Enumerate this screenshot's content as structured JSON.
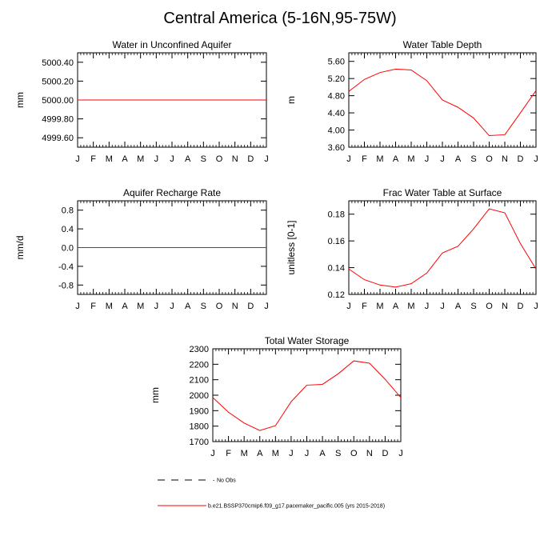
{
  "figure": {
    "title": "Central America (5-16N,95-75W)"
  },
  "months": [
    "J",
    "F",
    "M",
    "A",
    "M",
    "J",
    "J",
    "A",
    "S",
    "O",
    "N",
    "D",
    "J"
  ],
  "legend": [
    {
      "label": "No Obs",
      "style": "dashed",
      "color": "#000000"
    },
    {
      "label": "b.e21.BSSP370cmip6.f09_g17.pacemaker_pacific.005 (yrs 2015-2018)",
      "style": "solid",
      "color": "#ff0000"
    }
  ],
  "colors": {
    "series": "#ff0000",
    "axes": "#000000"
  },
  "chart_data": [
    {
      "id": "water-unconfined-aquifer",
      "type": "line",
      "title": "Water in Unconfined Aquifer",
      "ylabel": "mm",
      "ylim": [
        4999.5,
        5000.5
      ],
      "yticks": [
        4999.6,
        4999.8,
        5000.0,
        5000.2,
        5000.4
      ],
      "ytick_labels": [
        "4999.60",
        "4999.80",
        "5000.00",
        "5000.20",
        "5000.40"
      ],
      "series": [
        {
          "values": [
            5000,
            5000,
            5000,
            5000,
            5000,
            5000,
            5000,
            5000,
            5000,
            5000,
            5000,
            5000,
            5000
          ]
        }
      ]
    },
    {
      "id": "water-table-depth",
      "type": "line",
      "title": "Water Table Depth",
      "ylabel": "m",
      "ylim": [
        3.6,
        5.8
      ],
      "yticks": [
        3.6,
        4.0,
        4.4,
        4.8,
        5.2,
        5.6
      ],
      "ytick_labels": [
        "3.60",
        "4.00",
        "4.40",
        "4.80",
        "5.20",
        "5.60"
      ],
      "series": [
        {
          "values": [
            4.9,
            5.18,
            5.34,
            5.42,
            5.4,
            5.15,
            4.7,
            4.53,
            4.28,
            3.87,
            3.89,
            4.4,
            4.92
          ]
        }
      ]
    },
    {
      "id": "aquifer-recharge-rate",
      "type": "line",
      "title": "Aquifer Recharge Rate",
      "ylabel": "mm/d",
      "ylim": [
        -1.0,
        1.0
      ],
      "yticks": [
        -0.8,
        -0.4,
        0.0,
        0.4,
        0.8
      ],
      "ytick_labels": [
        "-0.8",
        "-0.4",
        "0.0",
        "0.4",
        "0.8"
      ],
      "series": [
        {
          "values": [
            0,
            0,
            0,
            0,
            0,
            0,
            0,
            0,
            0,
            0,
            0,
            0,
            0
          ]
        }
      ]
    },
    {
      "id": "frac-water-table-surface",
      "type": "line",
      "title": "Frac Water Table at Surface",
      "ylabel": "unitless [0-1]",
      "ylim": [
        0.12,
        0.19
      ],
      "yticks": [
        0.12,
        0.14,
        0.16,
        0.18
      ],
      "ytick_labels": [
        "0.12",
        "0.14",
        "0.16",
        "0.18"
      ],
      "series": [
        {
          "values": [
            0.139,
            0.131,
            0.127,
            0.1255,
            0.128,
            0.136,
            0.151,
            0.156,
            0.169,
            0.184,
            0.181,
            0.158,
            0.139
          ]
        }
      ]
    },
    {
      "id": "total-water-storage",
      "type": "line",
      "title": "Total Water Storage",
      "ylabel": "mm",
      "ylim": [
        1700,
        2300
      ],
      "yticks": [
        1700,
        1800,
        1900,
        2000,
        2100,
        2200,
        2300
      ],
      "ytick_labels": [
        "1700",
        "1800",
        "1900",
        "2000",
        "2100",
        "2200",
        "2300"
      ],
      "series": [
        {
          "values": [
            1985,
            1890,
            1820,
            1772,
            1803,
            1958,
            2065,
            2070,
            2138,
            2222,
            2207,
            2103,
            1985
          ]
        }
      ]
    }
  ]
}
